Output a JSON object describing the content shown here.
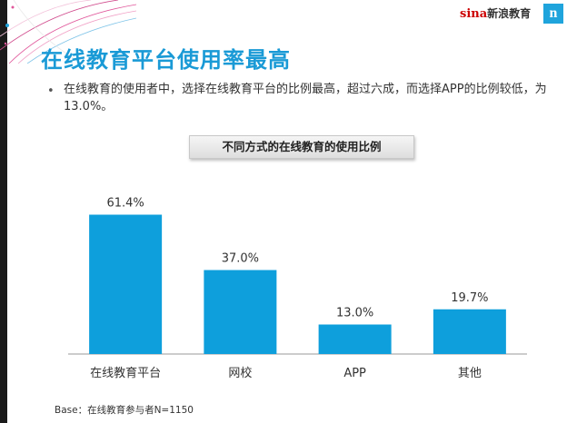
{
  "header": {
    "brand_latin": "sina",
    "brand_cn": "新浪教育",
    "logo_letter": "n"
  },
  "slide": {
    "title": "在线教育平台使用率最高",
    "bullet": "在线教育的使用者中，选择在线教育平台的比例最高，超过六成，而选择APP的比例较低，为13.0%。",
    "base_note": "Base：在线教育参与者N=1150"
  },
  "chart_data": {
    "type": "bar",
    "title": "不同方式的在线教育的使用比例",
    "categories": [
      "在线教育平台",
      "网校",
      "APP",
      "其他"
    ],
    "values": [
      61.4,
      37.0,
      13.0,
      19.7
    ],
    "value_labels": [
      "61.4%",
      "37.0%",
      "13.0%",
      "19.7%"
    ],
    "ylim": [
      0,
      70
    ],
    "grid": false,
    "bar_color": "#0e9fdc"
  },
  "colors": {
    "accent": "#1a9ad6",
    "bar": "#0e9fdc"
  }
}
